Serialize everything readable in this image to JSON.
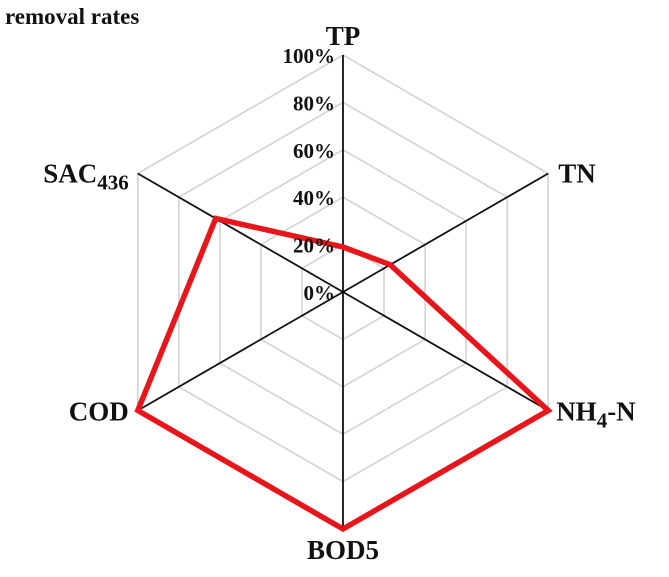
{
  "chart_data": {
    "type": "radar",
    "title": "removal rates",
    "categories": [
      {
        "key": "TP",
        "label": "TP",
        "sub": ""
      },
      {
        "key": "TN",
        "label": "TN",
        "sub": ""
      },
      {
        "key": "NH4-N",
        "label": "NH",
        "sub": "4",
        "suffix": "-N"
      },
      {
        "key": "BOD5",
        "label": "BOD5",
        "sub": ""
      },
      {
        "key": "COD",
        "label": "COD",
        "sub": ""
      },
      {
        "key": "SAC436",
        "label": "SAC",
        "sub": "436"
      }
    ],
    "tick_labels": [
      "0%",
      "20%",
      "40%",
      "60%",
      "80%",
      "100%"
    ],
    "rlim": [
      0,
      100
    ],
    "grid": true,
    "series": [
      {
        "values": [
          19,
          23,
          100,
          100,
          100,
          62
        ],
        "color": "#e8161b"
      }
    ],
    "colors": {
      "grid": "#d3d3d3",
      "axis": "#111111",
      "series": "#e8161b"
    }
  }
}
